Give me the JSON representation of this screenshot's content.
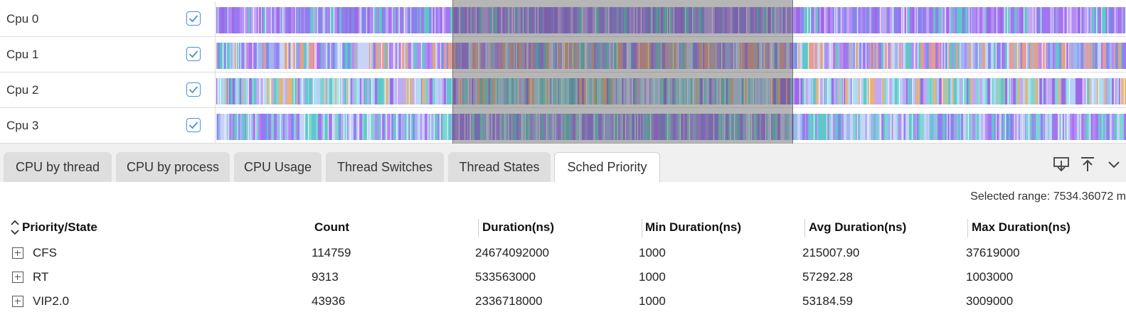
{
  "lanes": [
    {
      "label": "Cpu 0",
      "checked": true,
      "palette": [
        "#a673f2",
        "#9b6ae8",
        "#b48af7",
        "#7f8ce6",
        "#c4a7f5",
        "#5fc7c9",
        "#8e7ff0"
      ]
    },
    {
      "label": "Cpu 1",
      "checked": true,
      "palette": [
        "#a673f2",
        "#9fb6ef",
        "#c8d4f7",
        "#e0a57f",
        "#7b8ff0",
        "#5fc7c9",
        "#b48af7",
        "#e59a9a"
      ]
    },
    {
      "label": "Cpu 2",
      "checked": true,
      "palette": [
        "#7fd6d3",
        "#a8e2f0",
        "#9b6ae8",
        "#b8d2f5",
        "#e7b27e",
        "#5fc7c9",
        "#c4a7f5"
      ]
    },
    {
      "label": "Cpu 3",
      "checked": true,
      "palette": [
        "#a673f2",
        "#7fd6d3",
        "#b48af7",
        "#5fc7c9",
        "#c8d4f7",
        "#8e7ff0",
        "#9fb6ef"
      ]
    }
  ],
  "tabs": [
    {
      "label": "CPU by thread",
      "active": false
    },
    {
      "label": "CPU by process",
      "active": false
    },
    {
      "label": "CPU Usage",
      "active": false
    },
    {
      "label": "Thread Switches",
      "active": false
    },
    {
      "label": "Thread States",
      "active": false
    },
    {
      "label": "Sched Priority",
      "active": true
    }
  ],
  "toolbar_icons": [
    "download-icon",
    "upload-to-top-icon",
    "chevron-down-icon"
  ],
  "selected_range": "Selected range: 7534.36072 m",
  "table": {
    "columns": [
      "Priority/State",
      "Count",
      "Duration(ns)",
      "Min Duration(ns)",
      "Avg Duration(ns)",
      "Max Duration(ns)"
    ],
    "rows": [
      {
        "state": "CFS",
        "count": "114759",
        "duration": "24674092000",
        "min": "1000",
        "avg": "215007.90",
        "max": "37619000"
      },
      {
        "state": "RT",
        "count": "9313",
        "duration": "533563000",
        "min": "1000",
        "avg": "57292.28",
        "max": "1003000"
      },
      {
        "state": "VIP2.0",
        "count": "43936",
        "duration": "2336718000",
        "min": "1000",
        "avg": "53184.59",
        "max": "3009000"
      }
    ]
  }
}
